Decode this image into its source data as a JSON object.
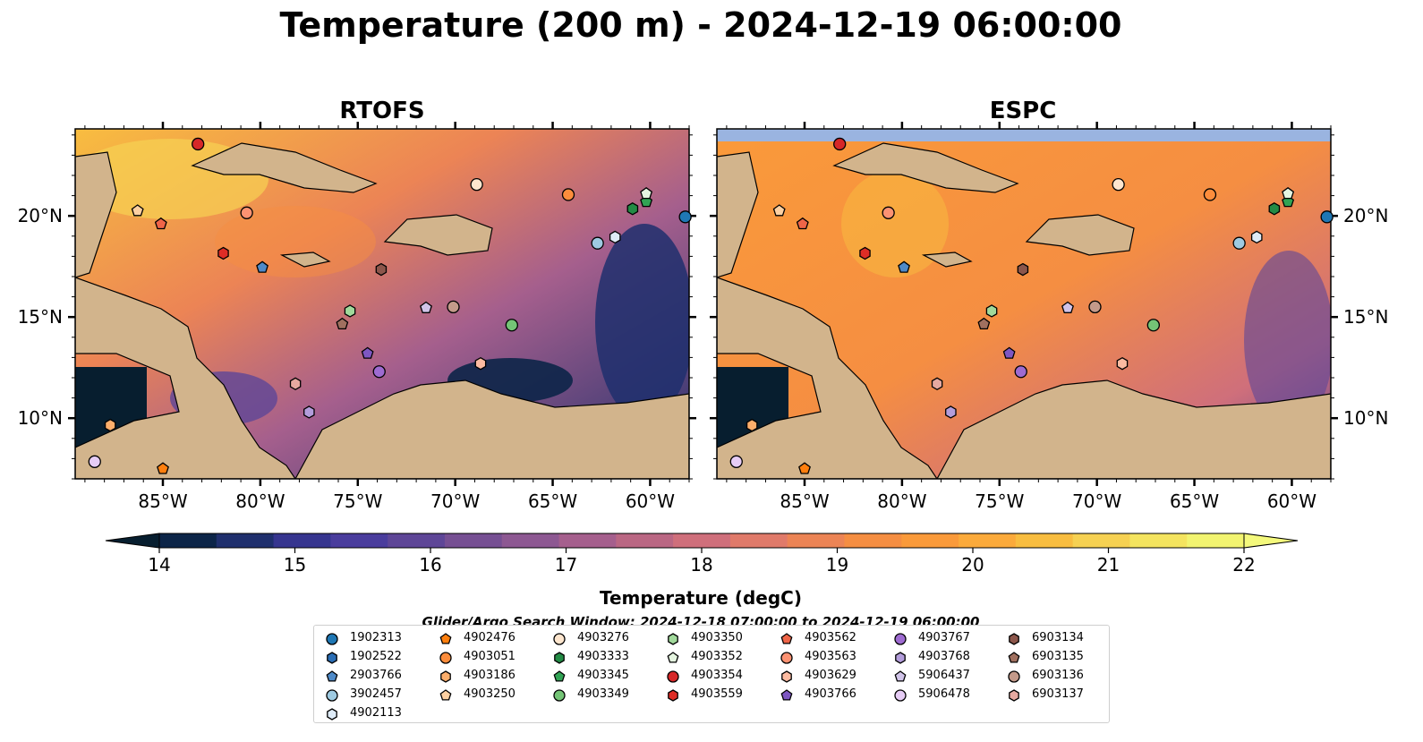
{
  "figure": {
    "title": "Temperature (200 m) - 2024-12-19 06:00:00",
    "search_window": "Glider/Argo Search Window: 2024-12-18 07:00:00 to 2024-12-19 06:00:00"
  },
  "chart_data": [
    {
      "type": "heatmap",
      "title": "RTOFS",
      "xlim": [
        -89.5,
        -58.0
      ],
      "ylim": [
        7.0,
        24.3
      ],
      "x_ticks": [
        "85°W",
        "80°W",
        "75°W",
        "70°W",
        "65°W",
        "60°W"
      ],
      "y_ticks": [
        "10°N",
        "15°N",
        "20°N"
      ],
      "y_tick_side": "left",
      "grid": false
    },
    {
      "type": "heatmap",
      "title": "ESPC",
      "xlim": [
        -89.5,
        -58.0
      ],
      "ylim": [
        7.0,
        24.3
      ],
      "x_ticks": [
        "85°W",
        "80°W",
        "75°W",
        "70°W",
        "65°W",
        "60°W"
      ],
      "y_ticks": [
        "10°N",
        "15°N",
        "20°N"
      ],
      "y_tick_side": "right",
      "grid": false
    }
  ],
  "colorbar": {
    "label": "Temperature (degC)",
    "vmin": 14,
    "vmax": 22,
    "step": 0.5,
    "tick_labels": [
      "14",
      "15",
      "16",
      "17",
      "18",
      "19",
      "20",
      "21",
      "22"
    ],
    "extend": "both",
    "colors": [
      "#071e2f",
      "#0c2548",
      "#1f2f6d",
      "#36358f",
      "#4a3d9d",
      "#5e4697",
      "#764f93",
      "#8d5892",
      "#a55f8d",
      "#ba6783",
      "#cf6f7b",
      "#e07a6a",
      "#ec8455",
      "#f58e42",
      "#fa9a3a",
      "#fbaa3b",
      "#f8bd40",
      "#f6d152",
      "#f4e45f",
      "#f2f470",
      "#f4f97c"
    ]
  },
  "floats": [
    {
      "id": "1902313",
      "marker": "circle",
      "color": "#1f77b4",
      "lon": -58.2,
      "lat": 19.95
    },
    {
      "id": "1902522",
      "marker": "hexagon",
      "color": "#2a6db4",
      "lon": null,
      "lat": null
    },
    {
      "id": "2903766",
      "marker": "pentagon",
      "color": "#4e8ac8",
      "lon": -79.9,
      "lat": 17.45
    },
    {
      "id": "3902457",
      "marker": "circle",
      "color": "#9ecae1",
      "lon": -62.7,
      "lat": 18.65
    },
    {
      "id": "4902113",
      "marker": "hexagon",
      "color": "#deebf7",
      "lon": -61.8,
      "lat": 18.95
    },
    {
      "id": "4902476",
      "marker": "pentagon",
      "color": "#ff7f0e",
      "lon": -85.0,
      "lat": 7.5
    },
    {
      "id": "4903051",
      "marker": "circle",
      "color": "#fd8d3c",
      "lon": -64.2,
      "lat": 21.05
    },
    {
      "id": "4903186",
      "marker": "hexagon",
      "color": "#fdae6b",
      "lon": -87.7,
      "lat": 9.65
    },
    {
      "id": "4903250",
      "marker": "pentagon",
      "color": "#fdd0a2",
      "lon": -86.3,
      "lat": 20.25
    },
    {
      "id": "4903276",
      "marker": "circle",
      "color": "#fee6ce",
      "lon": -68.9,
      "lat": 21.55
    },
    {
      "id": "4903333",
      "marker": "hexagon",
      "color": "#238b45",
      "lon": -60.9,
      "lat": 20.35
    },
    {
      "id": "4903345",
      "marker": "pentagon",
      "color": "#31a354",
      "lon": -60.2,
      "lat": 20.7
    },
    {
      "id": "4903349",
      "marker": "circle",
      "color": "#74c476",
      "lon": -67.1,
      "lat": 14.6
    },
    {
      "id": "4903350",
      "marker": "hexagon",
      "color": "#a1d99b",
      "lon": -75.4,
      "lat": 15.3
    },
    {
      "id": "4903352",
      "marker": "pentagon",
      "color": "#e5f5e0",
      "lon": -60.2,
      "lat": 21.1
    },
    {
      "id": "4903354",
      "marker": "circle",
      "color": "#d62728",
      "lon": -83.2,
      "lat": 23.55
    },
    {
      "id": "4903559",
      "marker": "hexagon",
      "color": "#de2d26",
      "lon": -81.9,
      "lat": 18.15
    },
    {
      "id": "4903562",
      "marker": "pentagon",
      "color": "#ef6548",
      "lon": -85.1,
      "lat": 19.6
    },
    {
      "id": "4903563",
      "marker": "circle",
      "color": "#fc9272",
      "lon": -80.7,
      "lat": 20.15
    },
    {
      "id": "4903629",
      "marker": "hexagon",
      "color": "#fcbba1",
      "lon": -68.7,
      "lat": 12.7
    },
    {
      "id": "4903766",
      "marker": "pentagon",
      "color": "#7e57c2",
      "lon": -74.5,
      "lat": 13.2
    },
    {
      "id": "4903767",
      "marker": "circle",
      "color": "#9e6bd1",
      "lon": -73.9,
      "lat": 12.3
    },
    {
      "id": "4903768",
      "marker": "hexagon",
      "color": "#b39ddb",
      "lon": -77.5,
      "lat": 10.3
    },
    {
      "id": "5906437",
      "marker": "pentagon",
      "color": "#d1c4e9",
      "lon": -71.5,
      "lat": 15.45
    },
    {
      "id": "5906478",
      "marker": "circle",
      "color": "#e6ccf5",
      "lon": -88.5,
      "lat": 7.85
    },
    {
      "id": "6903134",
      "marker": "hexagon",
      "color": "#8c564b",
      "lon": -73.8,
      "lat": 17.35
    },
    {
      "id": "6903135",
      "marker": "pentagon",
      "color": "#a0705f",
      "lon": -75.8,
      "lat": 14.65
    },
    {
      "id": "6903136",
      "marker": "circle",
      "color": "#c49a8a",
      "lon": -70.1,
      "lat": 15.5
    },
    {
      "id": "6903137",
      "marker": "hexagon",
      "color": "#e6a9a0",
      "lon": -78.2,
      "lat": 11.7
    }
  ]
}
